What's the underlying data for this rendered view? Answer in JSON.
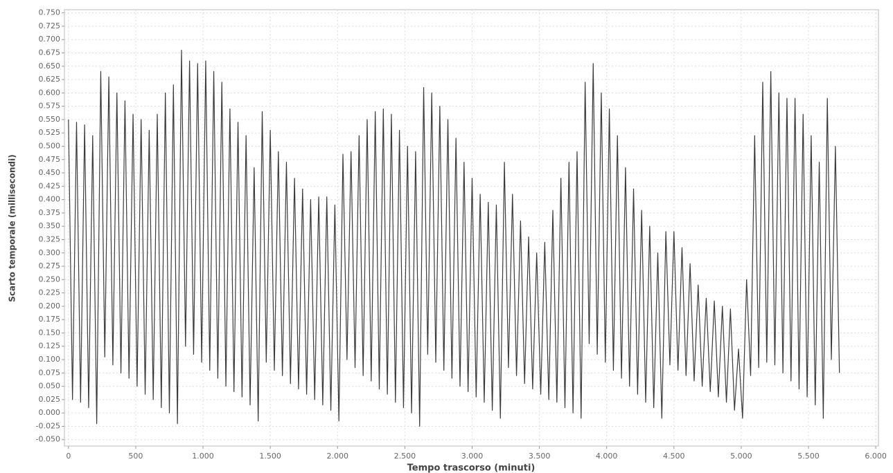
{
  "chart_data": {
    "type": "line",
    "xlabel": "Tempo trascorso (minuti)",
    "ylabel": "Scarto temporale (millisecondi)",
    "xlim": [
      -30,
      6020
    ],
    "ylim": [
      -0.062,
      0.756
    ],
    "grid": true,
    "xticks": [
      0,
      500,
      {
        "value": 1000,
        "label": "1.000"
      },
      {
        "value": 1500,
        "label": "1.500"
      },
      {
        "value": 2000,
        "label": "2.000"
      },
      {
        "value": 2500,
        "label": "2.500"
      },
      {
        "value": 3000,
        "label": "3.000"
      },
      {
        "value": 3500,
        "label": "3.500"
      },
      {
        "value": 4000,
        "label": "4.000"
      },
      {
        "value": 4500,
        "label": "4.500"
      },
      {
        "value": 5000,
        "label": "5.000"
      },
      {
        "value": 5500,
        "label": "5.500"
      },
      {
        "value": 6000,
        "label": "6.000"
      }
    ],
    "yticks": [
      {
        "value": -0.05,
        "label": "-0.050"
      },
      {
        "value": -0.025,
        "label": "-0.025"
      },
      {
        "value": 0,
        "label": "0.000"
      },
      {
        "value": 0.025,
        "label": "0.025"
      },
      {
        "value": 0.05,
        "label": "0.050"
      },
      {
        "value": 0.075,
        "label": "0.075"
      },
      {
        "value": 0.1,
        "label": "0.100"
      },
      {
        "value": 0.125,
        "label": "0.125"
      },
      {
        "value": 0.15,
        "label": "0.150"
      },
      {
        "value": 0.175,
        "label": "0.175"
      },
      {
        "value": 0.2,
        "label": "0.200"
      },
      {
        "value": 0.225,
        "label": "0.225"
      },
      {
        "value": 0.25,
        "label": "0.250"
      },
      {
        "value": 0.275,
        "label": "0.275"
      },
      {
        "value": 0.3,
        "label": "0.300"
      },
      {
        "value": 0.325,
        "label": "0.325"
      },
      {
        "value": 0.35,
        "label": "0.350"
      },
      {
        "value": 0.375,
        "label": "0.375"
      },
      {
        "value": 0.4,
        "label": "0.400"
      },
      {
        "value": 0.425,
        "label": "0.425"
      },
      {
        "value": 0.45,
        "label": "0.450"
      },
      {
        "value": 0.475,
        "label": "0.475"
      },
      {
        "value": 0.5,
        "label": "0.500"
      },
      {
        "value": 0.525,
        "label": "0.525"
      },
      {
        "value": 0.55,
        "label": "0.550"
      },
      {
        "value": 0.575,
        "label": "0.575"
      },
      {
        "value": 0.6,
        "label": "0.600"
      },
      {
        "value": 0.625,
        "label": "0.625"
      },
      {
        "value": 0.65,
        "label": "0.650"
      },
      {
        "value": 0.675,
        "label": "0.675"
      },
      {
        "value": 0.7,
        "label": "0.700"
      },
      {
        "value": 0.725,
        "label": "0.725"
      },
      {
        "value": 0.75,
        "label": "0.750"
      }
    ],
    "color": "#3a3a3a",
    "x": [
      0,
      30,
      60,
      90,
      120,
      150,
      180,
      210,
      240,
      270,
      300,
      330,
      360,
      390,
      420,
      450,
      480,
      510,
      540,
      570,
      600,
      630,
      660,
      690,
      720,
      750,
      780,
      810,
      840,
      870,
      900,
      930,
      960,
      990,
      1020,
      1050,
      1080,
      1110,
      1140,
      1170,
      1200,
      1230,
      1260,
      1290,
      1320,
      1350,
      1380,
      1410,
      1440,
      1470,
      1500,
      1530,
      1560,
      1590,
      1620,
      1650,
      1680,
      1710,
      1740,
      1770,
      1800,
      1830,
      1860,
      1890,
      1920,
      1950,
      1980,
      2010,
      2040,
      2070,
      2100,
      2130,
      2160,
      2190,
      2220,
      2250,
      2280,
      2310,
      2340,
      2370,
      2400,
      2430,
      2460,
      2490,
      2520,
      2550,
      2580,
      2610,
      2640,
      2670,
      2700,
      2730,
      2760,
      2790,
      2820,
      2850,
      2880,
      2910,
      2940,
      2970,
      3000,
      3030,
      3060,
      3090,
      3120,
      3150,
      3180,
      3210,
      3240,
      3270,
      3300,
      3330,
      3360,
      3390,
      3420,
      3450,
      3480,
      3510,
      3540,
      3570,
      3600,
      3630,
      3660,
      3690,
      3720,
      3750,
      3780,
      3810,
      3840,
      3870,
      3900,
      3930,
      3960,
      3990,
      4020,
      4050,
      4080,
      4110,
      4140,
      4170,
      4200,
      4230,
      4260,
      4290,
      4320,
      4350,
      4380,
      4410,
      4440,
      4470,
      4500,
      4530,
      4560,
      4590,
      4620,
      4650,
      4680,
      4710,
      4740,
      4770,
      4800,
      4830,
      4860,
      4890,
      4920,
      4950,
      4980,
      5010,
      5040,
      5070,
      5100,
      5130,
      5160,
      5190,
      5220,
      5250,
      5280,
      5310,
      5340,
      5370,
      5400,
      5430,
      5460,
      5490,
      5520,
      5550,
      5580,
      5610,
      5640,
      5670,
      5700,
      5730
    ],
    "values": [
      0.55,
      0.025,
      0.545,
      0.02,
      0.54,
      0.01,
      0.52,
      -0.02,
      0.64,
      0.105,
      0.63,
      0.09,
      0.6,
      0.075,
      0.585,
      0.065,
      0.56,
      0.05,
      0.55,
      0.035,
      0.53,
      0.025,
      0.56,
      0.01,
      0.6,
      0.0,
      0.615,
      -0.02,
      0.68,
      0.125,
      0.66,
      0.11,
      0.655,
      0.095,
      0.66,
      0.08,
      0.64,
      0.065,
      0.62,
      0.05,
      0.57,
      0.04,
      0.545,
      0.03,
      0.52,
      0.015,
      0.46,
      -0.015,
      0.565,
      0.095,
      0.53,
      0.08,
      0.49,
      0.07,
      0.47,
      0.055,
      0.44,
      0.045,
      0.42,
      0.035,
      0.4,
      0.025,
      0.405,
      0.015,
      0.405,
      0.005,
      0.39,
      -0.015,
      0.485,
      0.1,
      0.49,
      0.085,
      0.52,
      0.07,
      0.55,
      0.06,
      0.565,
      0.045,
      0.57,
      0.035,
      0.56,
      0.02,
      0.53,
      0.01,
      0.5,
      0.0,
      0.49,
      -0.025,
      0.61,
      0.11,
      0.6,
      0.095,
      0.575,
      0.08,
      0.55,
      0.065,
      0.515,
      0.05,
      0.47,
      0.04,
      0.44,
      0.03,
      0.41,
      0.02,
      0.395,
      0.005,
      0.39,
      -0.01,
      0.47,
      0.085,
      0.41,
      0.07,
      0.36,
      0.055,
      0.33,
      0.045,
      0.3,
      0.035,
      0.32,
      0.025,
      0.38,
      0.02,
      0.44,
      0.01,
      0.47,
      0.0,
      0.49,
      -0.01,
      0.62,
      0.13,
      0.655,
      0.11,
      0.6,
      0.095,
      0.57,
      0.08,
      0.52,
      0.065,
      0.46,
      0.05,
      0.42,
      0.035,
      0.38,
      0.02,
      0.35,
      0.01,
      0.3,
      -0.01,
      0.34,
      0.09,
      0.34,
      0.08,
      0.31,
      0.07,
      0.28,
      0.06,
      0.24,
      0.05,
      0.215,
      0.04,
      0.21,
      0.03,
      0.2,
      0.02,
      0.195,
      0.005,
      0.12,
      -0.01,
      0.25,
      0.07,
      0.52,
      0.085,
      0.62,
      0.095,
      0.64,
      0.09,
      0.6,
      0.075,
      0.59,
      0.06,
      0.59,
      0.045,
      0.56,
      0.03,
      0.52,
      0.015,
      0.47,
      -0.01,
      0.59,
      0.1,
      0.5,
      0.075
    ]
  }
}
